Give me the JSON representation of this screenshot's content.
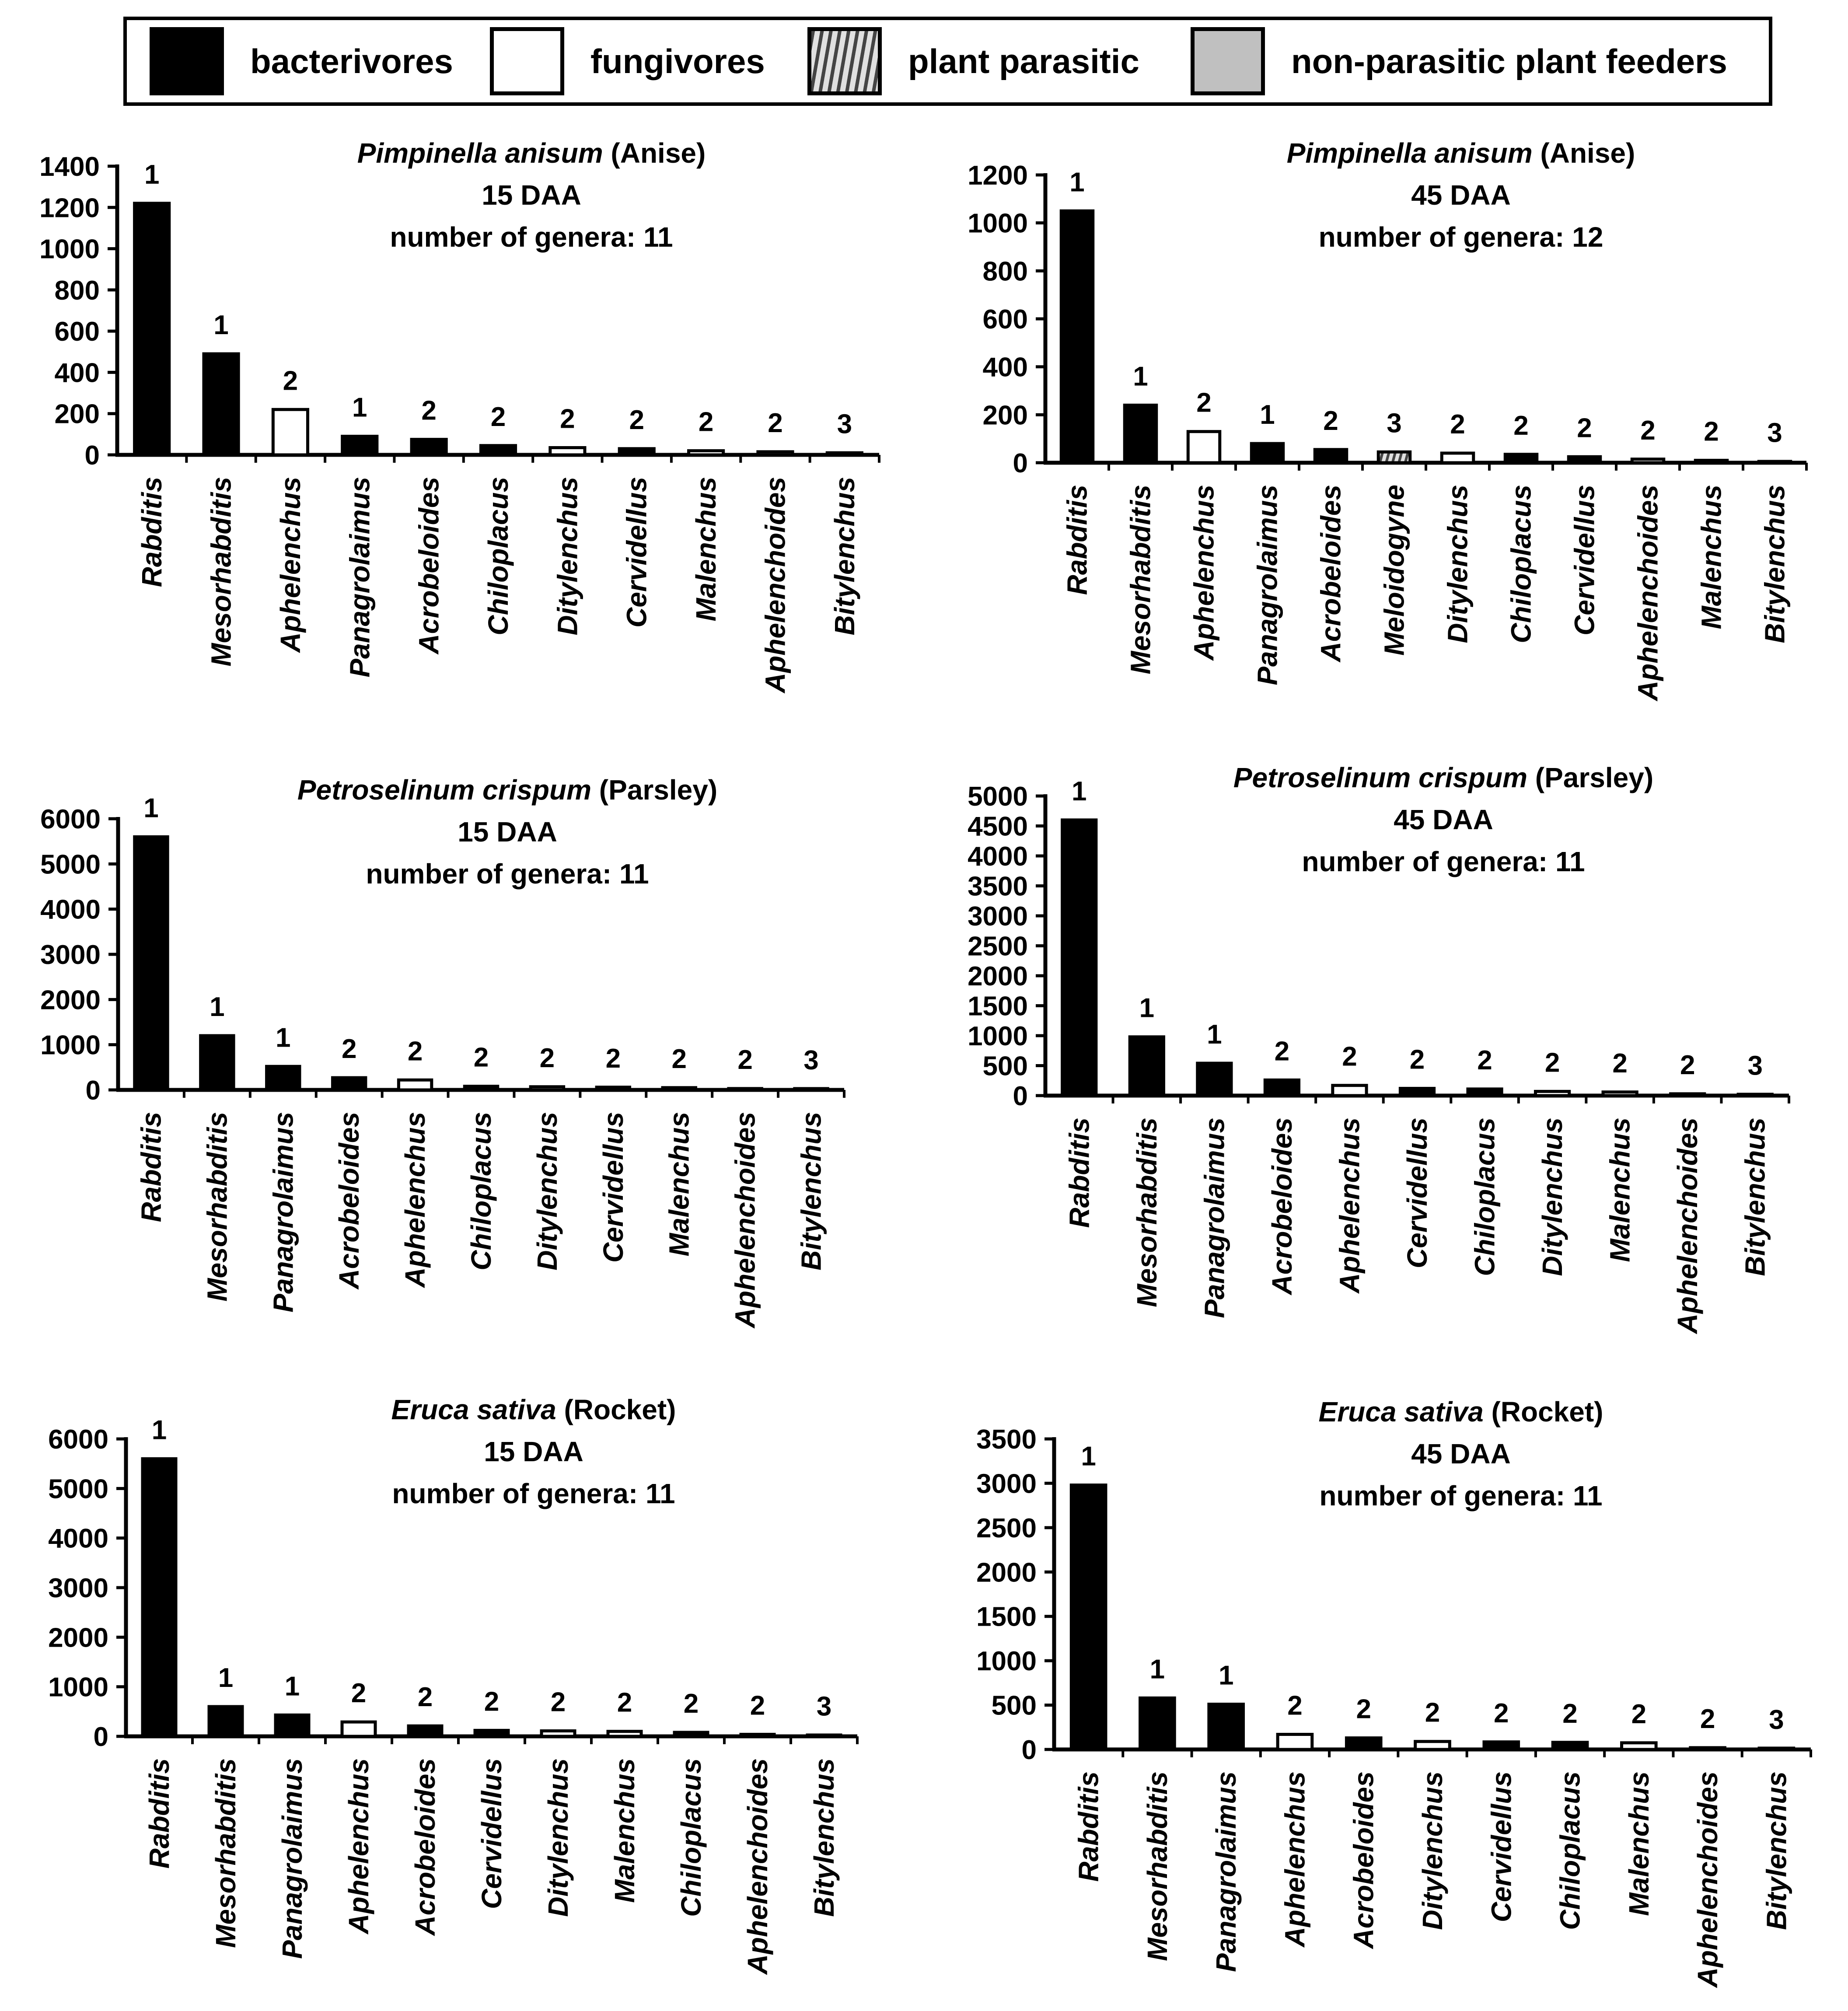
{
  "legend": {
    "items": [
      {
        "key": "bacterivores",
        "label": "bacterivores",
        "color": "#000000",
        "pattern": "solid"
      },
      {
        "key": "fungivores",
        "label": "fungivores",
        "color": "#ffffff",
        "pattern": "solid"
      },
      {
        "key": "plant_parasitic",
        "label": "plant parasitic",
        "color": "#888888",
        "pattern": "stripes"
      },
      {
        "key": "non_parasitic",
        "label": "non-parasitic plant feeders",
        "color": "#c0c0c0",
        "pattern": "solid"
      }
    ]
  },
  "chart_data": [
    {
      "type": "bar",
      "title_italic": "Pimpinella anisum",
      "title_common": " (Anise)",
      "subtitle": "15 DAA",
      "genera_label": "number of genera: 11",
      "ylim": [
        0,
        1400
      ],
      "yticks": [
        0,
        200,
        400,
        600,
        800,
        1000,
        1200,
        1400
      ],
      "categories": [
        "Rabditis",
        "Mesorhabditis",
        "Aphelenchus",
        "Panagrolaimus",
        "Acrobeloides",
        "Chiloplacus",
        "Ditylenchus",
        "Cervidellus",
        "Malenchus",
        "Aphelenchoides",
        "Bitylenchus"
      ],
      "values": [
        1220,
        490,
        220,
        90,
        75,
        45,
        35,
        30,
        20,
        15,
        10
      ],
      "groups": [
        "bacterivores",
        "bacterivores",
        "fungivores",
        "bacterivores",
        "bacterivores",
        "bacterivores",
        "fungivores",
        "bacterivores",
        "fungivores",
        "fungivores",
        "plant_parasitic"
      ],
      "cp_labels": [
        "1",
        "1",
        "2",
        "1",
        "2",
        "2",
        "2",
        "2",
        "2",
        "2",
        "3"
      ]
    },
    {
      "type": "bar",
      "title_italic": "Pimpinella anisum",
      "title_common": " (Anise)",
      "subtitle": "45 DAA",
      "genera_label": "number of genera: 12",
      "ylim": [
        0,
        1200
      ],
      "yticks": [
        0,
        200,
        400,
        600,
        800,
        1000,
        1200
      ],
      "categories": [
        "Rabditis",
        "Mesorhabditis",
        "Aphelenchus",
        "Panagrolaimus",
        "Acrobeloides",
        "Meloidogyne",
        "Ditylenchus",
        "Chiloplacus",
        "Cervidellus",
        "Aphelenchoides",
        "Malenchus",
        "Bitylenchus"
      ],
      "values": [
        1050,
        240,
        130,
        80,
        55,
        45,
        40,
        35,
        25,
        15,
        10,
        5
      ],
      "groups": [
        "bacterivores",
        "bacterivores",
        "fungivores",
        "bacterivores",
        "bacterivores",
        "plant_parasitic",
        "fungivores",
        "bacterivores",
        "bacterivores",
        "fungivores",
        "fungivores",
        "plant_parasitic"
      ],
      "cp_labels": [
        "1",
        "1",
        "2",
        "1",
        "2",
        "3",
        "2",
        "2",
        "2",
        "2",
        "2",
        "3"
      ]
    },
    {
      "type": "bar",
      "title_italic": "Petroselinum crispum",
      "title_common": " (Parsley)",
      "subtitle": "15 DAA",
      "genera_label": "number of genera: 11",
      "ylim": [
        0,
        6000
      ],
      "yticks": [
        0,
        1000,
        2000,
        3000,
        4000,
        5000,
        6000
      ],
      "categories": [
        "Rabditis",
        "Mesorhabditis",
        "Panagrolaimus",
        "Acrobeloides",
        "Aphelenchus",
        "Chiloplacus",
        "Ditylenchus",
        "Cervidellus",
        "Malenchus",
        "Aphelenchoides",
        "Bitylenchus"
      ],
      "values": [
        5600,
        1200,
        520,
        270,
        220,
        80,
        70,
        60,
        50,
        30,
        20
      ],
      "groups": [
        "bacterivores",
        "bacterivores",
        "bacterivores",
        "bacterivores",
        "fungivores",
        "bacterivores",
        "fungivores",
        "bacterivores",
        "fungivores",
        "fungivores",
        "plant_parasitic"
      ],
      "cp_labels": [
        "1",
        "1",
        "1",
        "2",
        "2",
        "2",
        "2",
        "2",
        "2",
        "2",
        "3"
      ]
    },
    {
      "type": "bar",
      "title_italic": "Petroselinum crispum",
      "title_common": " (Parsley)",
      "subtitle": "45 DAA",
      "genera_label": "number of genera: 11",
      "ylim": [
        0,
        5000
      ],
      "yticks": [
        0,
        500,
        1000,
        1500,
        2000,
        2500,
        3000,
        3500,
        4000,
        4500,
        5000
      ],
      "categories": [
        "Rabditis",
        "Mesorhabditis",
        "Panagrolaimus",
        "Acrobeloides",
        "Aphelenchus",
        "Cervidellus",
        "Chiloplacus",
        "Ditylenchus",
        "Malenchus",
        "Aphelenchoides",
        "Bitylenchus"
      ],
      "values": [
        4600,
        980,
        540,
        260,
        170,
        120,
        110,
        70,
        60,
        30,
        20
      ],
      "groups": [
        "bacterivores",
        "bacterivores",
        "bacterivores",
        "bacterivores",
        "fungivores",
        "bacterivores",
        "bacterivores",
        "fungivores",
        "fungivores",
        "fungivores",
        "plant_parasitic"
      ],
      "cp_labels": [
        "1",
        "1",
        "1",
        "2",
        "2",
        "2",
        "2",
        "2",
        "2",
        "2",
        "3"
      ]
    },
    {
      "type": "bar",
      "title_italic": "Eruca sativa",
      "title_common": " (Rocket)",
      "subtitle": "15 DAA",
      "genera_label": "number of genera: 11",
      "ylim": [
        0,
        6000
      ],
      "yticks": [
        0,
        1000,
        2000,
        3000,
        4000,
        5000,
        6000
      ],
      "categories": [
        "Rabditis",
        "Mesorhabditis",
        "Panagrolaimus",
        "Aphelenchus",
        "Acrobeloides",
        "Cervidellus",
        "Ditylenchus",
        "Malenchus",
        "Chiloplacus",
        "Aphelenchoides",
        "Bitylenchus"
      ],
      "values": [
        5600,
        600,
        430,
        290,
        210,
        120,
        110,
        100,
        80,
        40,
        20
      ],
      "groups": [
        "bacterivores",
        "bacterivores",
        "bacterivores",
        "fungivores",
        "bacterivores",
        "bacterivores",
        "fungivores",
        "fungivores",
        "bacterivores",
        "fungivores",
        "plant_parasitic"
      ],
      "cp_labels": [
        "1",
        "1",
        "1",
        "2",
        "2",
        "2",
        "2",
        "2",
        "2",
        "2",
        "3"
      ]
    },
    {
      "type": "bar",
      "title_italic": "Eruca sativa",
      "title_common": " (Rocket)",
      "subtitle": "45 DAA",
      "genera_label": "number of genera: 11",
      "ylim": [
        0,
        3500
      ],
      "yticks": [
        0,
        500,
        1000,
        1500,
        2000,
        2500,
        3000,
        3500
      ],
      "categories": [
        "Rabditis",
        "Mesorhabditis",
        "Panagrolaimus",
        "Aphelenchus",
        "Acrobeloides",
        "Ditylenchus",
        "Cervidellus",
        "Chiloplacus",
        "Malenchus",
        "Aphelenchoides",
        "Bitylenchus"
      ],
      "values": [
        2980,
        580,
        510,
        170,
        130,
        90,
        85,
        80,
        75,
        20,
        10
      ],
      "groups": [
        "bacterivores",
        "bacterivores",
        "bacterivores",
        "fungivores",
        "bacterivores",
        "fungivores",
        "bacterivores",
        "bacterivores",
        "fungivores",
        "fungivores",
        "plant_parasitic"
      ],
      "cp_labels": [
        "1",
        "1",
        "1",
        "2",
        "2",
        "2",
        "2",
        "2",
        "2",
        "2",
        "3"
      ]
    }
  ]
}
